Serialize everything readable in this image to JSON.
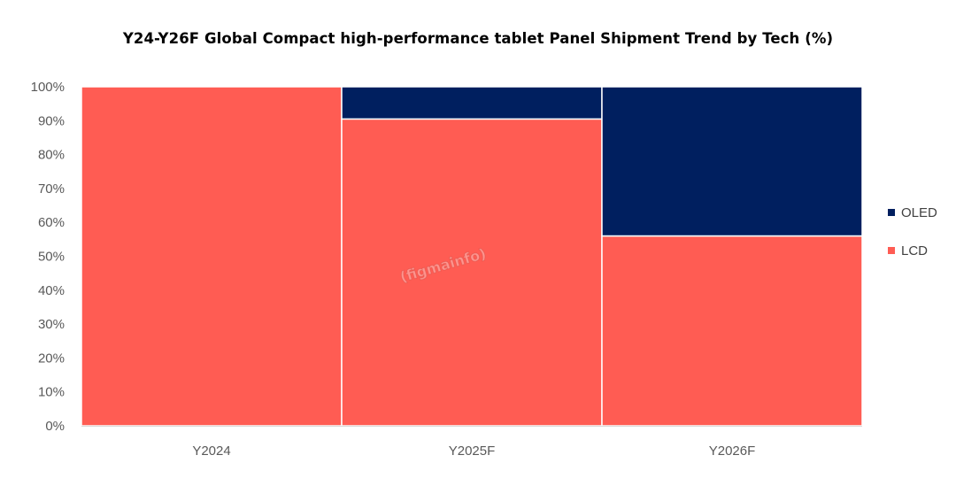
{
  "chart_data": {
    "type": "bar",
    "stacked": true,
    "title": "Y24-Y26F Global Compact high-performance tablet Panel Shipment Trend by Tech (%)",
    "categories": [
      "Y2024",
      "Y2025F",
      "Y2026F"
    ],
    "series": [
      {
        "name": "LCD",
        "color": "#FF5C53",
        "values": [
          100,
          90.5,
          56
        ]
      },
      {
        "name": "OLED",
        "color": "#001F5F",
        "values": [
          0,
          9.5,
          44
        ]
      }
    ],
    "ylim": [
      0,
      100
    ],
    "yticks": [
      "0%",
      "10%",
      "20%",
      "30%",
      "40%",
      "50%",
      "60%",
      "70%",
      "80%",
      "90%",
      "100%"
    ],
    "legend": {
      "position": "right",
      "items": [
        "OLED",
        "LCD"
      ]
    },
    "grid": false,
    "watermark": "(figmainfo)"
  }
}
